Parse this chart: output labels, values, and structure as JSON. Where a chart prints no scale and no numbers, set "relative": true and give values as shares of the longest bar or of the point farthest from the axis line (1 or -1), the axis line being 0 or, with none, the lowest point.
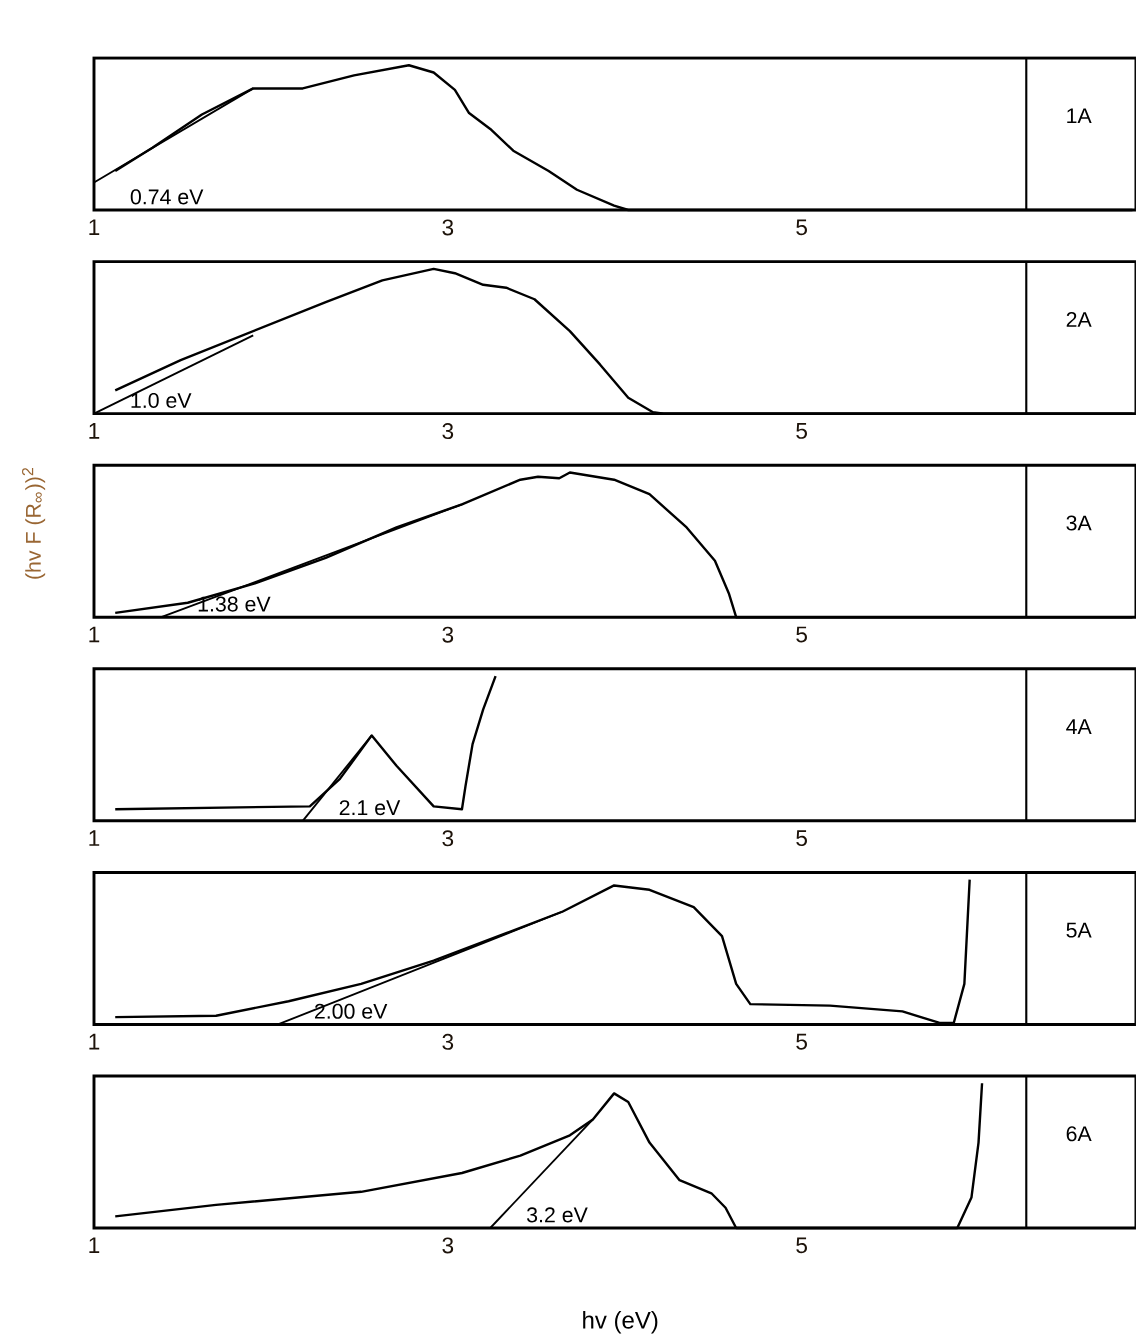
{
  "chart_data": [
    {
      "type": "line",
      "relative": true,
      "xlim": [
        1,
        6.89
      ],
      "xticks": [
        1,
        3,
        5
      ],
      "series": [
        {
          "color": "#000000",
          "x": [
            1.12,
            1.33,
            1.61,
            1.9,
            2.18,
            2.47,
            2.78,
            2.92,
            3.04,
            3.12,
            3.24,
            3.37,
            3.57,
            3.73,
            3.94,
            4.02,
            4.55,
            6.18,
            6.87
          ],
          "values": [
            0.27,
            0.43,
            0.66,
            0.84,
            0.84,
            0.93,
            1.0,
            0.95,
            0.83,
            0.67,
            0.56,
            0.41,
            0.27,
            0.14,
            0.03,
            0,
            0,
            0,
            0
          ]
        },
        {
          "type": "line",
          "color": "#000000",
          "x": [
            1.0,
            1.9
          ],
          "values": [
            0.19,
            0.84
          ]
        }
      ],
      "annotations": [
        "0.74 eV",
        "1A"
      ],
      "ref_lines": [
        {
          "axis": "x",
          "value": 6.27
        }
      ]
    },
    {
      "type": "line",
      "relative": true,
      "xlim": [
        1,
        6.89
      ],
      "xticks": [
        1,
        3,
        5
      ],
      "series": [
        {
          "color": "#000000",
          "x": [
            1.12,
            1.49,
            1.9,
            2.31,
            2.63,
            2.92,
            3.04,
            3.2,
            3.33,
            3.49,
            3.69,
            3.86,
            4.02,
            4.16,
            4.22,
            6.87
          ],
          "values": [
            0.16,
            0.37,
            0.57,
            0.77,
            0.92,
            1.0,
            0.97,
            0.89,
            0.87,
            0.79,
            0.57,
            0.34,
            0.11,
            0.01,
            0,
            0
          ]
        },
        {
          "type": "line",
          "color": "#000000",
          "x": [
            1.0,
            1.9
          ],
          "values": [
            0,
            0.54
          ]
        }
      ],
      "annotations": [
        "1.0 eV",
        "2A"
      ],
      "ref_lines": [
        {
          "axis": "x",
          "value": 6.27
        }
      ]
    },
    {
      "type": "line",
      "relative": true,
      "xlim": [
        1,
        6.89
      ],
      "xticks": [
        1,
        3,
        5
      ],
      "ylabel": "(hv F (R$_{∞}$))$^{2}$",
      "series": [
        {
          "color": "#000000",
          "x": [
            1.12,
            1.53,
            1.9,
            2.31,
            2.71,
            3.08,
            3.41,
            3.51,
            3.63,
            3.69,
            3.94,
            4.14,
            4.35,
            4.51,
            4.59,
            4.63,
            6.87
          ],
          "values": [
            0.03,
            0.1,
            0.23,
            0.41,
            0.62,
            0.78,
            0.95,
            0.97,
            0.96,
            1.0,
            0.95,
            0.85,
            0.62,
            0.39,
            0.16,
            0,
            0
          ]
        },
        {
          "type": "line",
          "color": "#000000",
          "x": [
            1.38,
            3.08
          ],
          "values": [
            0,
            0.78
          ]
        }
      ],
      "annotations": [
        "1.38 eV",
        "3A"
      ],
      "ref_lines": [
        {
          "axis": "x",
          "value": 6.27
        }
      ]
    },
    {
      "type": "line",
      "relative": true,
      "xlim": [
        1,
        6.89
      ],
      "xticks": [
        1,
        3,
        5
      ],
      "series": [
        {
          "color": "#000000",
          "x": [
            1.12,
            2.22,
            2.39,
            2.57,
            2.71,
            2.92,
            3.08,
            3.1,
            3.14,
            3.2,
            3.27
          ],
          "values": [
            0.08,
            0.1,
            0.29,
            0.59,
            0.38,
            0.1,
            0.08,
            0.24,
            0.53,
            0.77,
            1.0
          ]
        },
        {
          "type": "line",
          "color": "#000000",
          "x": [
            2.18,
            2.57
          ],
          "values": [
            0,
            0.59
          ]
        }
      ],
      "annotations": [
        "2.1 eV",
        "4A"
      ],
      "ref_lines": [
        {
          "axis": "x",
          "value": 6.27
        }
      ]
    },
    {
      "type": "line",
      "relative": true,
      "xlim": [
        1,
        6.89
      ],
      "xticks": [
        1,
        3,
        5
      ],
      "series": [
        {
          "color": "#000000",
          "x": [
            1.12,
            1.69,
            2.1,
            2.51,
            2.92,
            3.33,
            3.65,
            3.94,
            4.14,
            4.39,
            4.55,
            4.63,
            4.71,
            5.16,
            5.57,
            5.78,
            5.86,
            5.92,
            5.95
          ],
          "values": [
            0.05,
            0.06,
            0.16,
            0.28,
            0.44,
            0.63,
            0.78,
            0.96,
            0.93,
            0.81,
            0.61,
            0.28,
            0.14,
            0.13,
            0.09,
            0.01,
            0.01,
            0.28,
            1.0
          ]
        },
        {
          "type": "line",
          "color": "#000000",
          "x": [
            2.04,
            3.65
          ],
          "values": [
            0,
            0.78
          ]
        }
      ],
      "annotations": [
        "2.00 eV",
        "5A"
      ],
      "ref_lines": [
        {
          "axis": "x",
          "value": 6.27
        }
      ]
    },
    {
      "type": "line",
      "relative": true,
      "xlim": [
        1,
        6.89
      ],
      "xticks": [
        1,
        3,
        5
      ],
      "xlabel": "hv (eV)",
      "series": [
        {
          "color": "#000000",
          "x": [
            1.12,
            1.69,
            2.51,
            3.08,
            3.41,
            3.69,
            3.82,
            3.94,
            4.02,
            4.14,
            4.31,
            4.49,
            4.57,
            4.63,
            5.88,
            5.96,
            6.0,
            6.02
          ],
          "values": [
            0.08,
            0.16,
            0.25,
            0.38,
            0.5,
            0.64,
            0.75,
            0.93,
            0.87,
            0.59,
            0.33,
            0.24,
            0.14,
            0,
            0,
            0.21,
            0.59,
            1.0
          ]
        },
        {
          "type": "line",
          "color": "#000000",
          "x": [
            3.24,
            3.82
          ],
          "values": [
            0,
            0.75
          ]
        }
      ],
      "annotations": [
        "3.2 eV",
        "6A"
      ],
      "ref_lines": [
        {
          "axis": "x",
          "value": 6.27
        }
      ]
    }
  ]
}
